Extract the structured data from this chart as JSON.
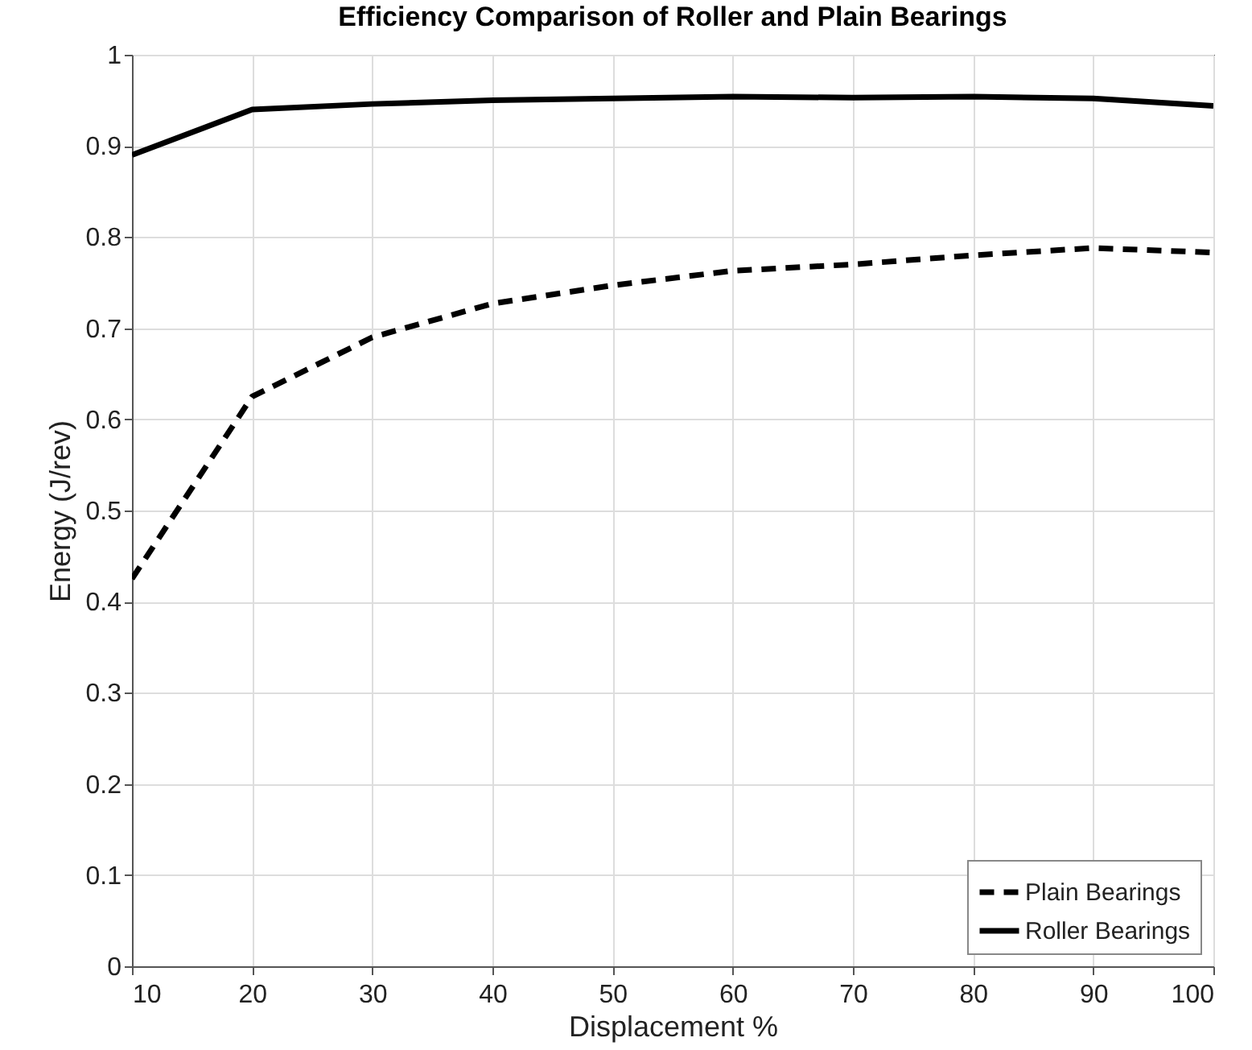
{
  "chart_data": {
    "type": "line",
    "title": "Efficiency Comparison of Roller and Plain Bearings",
    "xlabel": "Displacement %",
    "ylabel": "Energy (J/rev)",
    "x": [
      10,
      20,
      30,
      40,
      50,
      60,
      70,
      80,
      90,
      100
    ],
    "series": [
      {
        "name": "Plain Bearings",
        "color": "#000000",
        "line_style": "dashed",
        "values": [
          0.425,
          0.625,
          0.69,
          0.727,
          0.747,
          0.763,
          0.77,
          0.78,
          0.788,
          0.783
        ]
      },
      {
        "name": "Roller Bearings",
        "color": "#000000",
        "line_style": "solid",
        "values": [
          0.89,
          0.94,
          0.946,
          0.95,
          0.952,
          0.954,
          0.953,
          0.954,
          0.952,
          0.944
        ]
      }
    ],
    "xlim": [
      10,
      100
    ],
    "xticks": [
      10,
      20,
      30,
      40,
      50,
      60,
      70,
      80,
      90,
      100
    ],
    "ylim": [
      0,
      1
    ],
    "yticks": [
      0,
      0.1,
      0.2,
      0.3,
      0.4,
      0.5,
      0.6,
      0.7,
      0.8,
      0.9,
      1
    ],
    "grid": true,
    "legend": "bottom right",
    "marker": "none"
  }
}
